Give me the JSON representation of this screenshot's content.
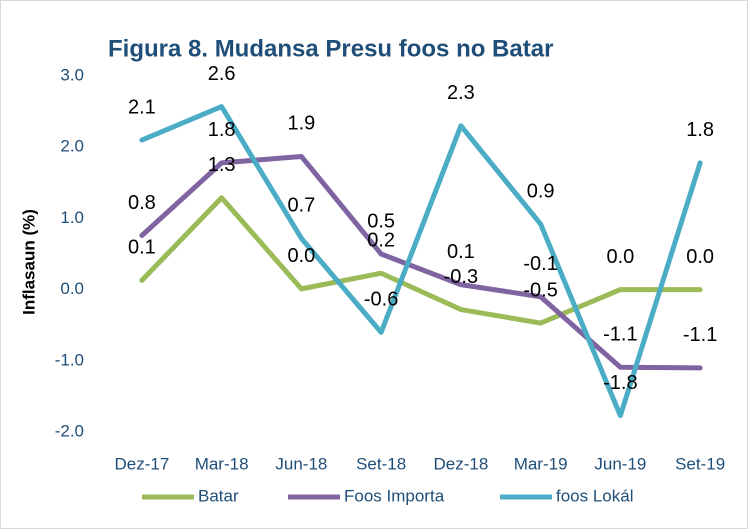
{
  "chart_data": {
    "type": "line",
    "title": "Figura 8. Mudansa Presu foos no Batar",
    "y_label": "Inflasaun  (%)",
    "categories": [
      "Dez-17",
      "Mar-18",
      "Jun-18",
      "Set-18",
      "Dez-18",
      "Mar-19",
      "Jun-19",
      "Set-19"
    ],
    "series": [
      {
        "name": "Batar",
        "color": "#9bbb59",
        "values": [
          0.13,
          1.29,
          0.01,
          0.23,
          -0.28,
          -0.47,
          0.0,
          0.0
        ],
        "value_labels": [
          "0.1",
          "1.3",
          "0.0",
          "0.2",
          "-0.3",
          "-0.5",
          "0.0",
          "0.0"
        ]
      },
      {
        "name": "Foos Importa",
        "color": "#8064a2",
        "values": [
          0.76,
          1.78,
          1.87,
          0.5,
          0.07,
          -0.1,
          -1.09,
          -1.1
        ],
        "value_labels": [
          "0.8",
          "1.8",
          "1.9",
          "0.5",
          "0.1",
          "-0.1",
          "-1.1",
          "-1.1"
        ]
      },
      {
        "name": "foos Lokál",
        "color": "#4bacc6",
        "values": [
          2.1,
          2.57,
          0.72,
          -0.6,
          2.3,
          0.92,
          -1.77,
          1.78
        ],
        "value_labels": [
          "2.1",
          "2.6",
          "0.7",
          "-0.6",
          "2.3",
          "0.9",
          "-1.8",
          "1.8"
        ]
      }
    ],
    "ylim": [
      -2,
      3
    ],
    "yticks": [
      {
        "value": -2,
        "label": "-2.0"
      },
      {
        "value": -1,
        "label": "-1.0"
      },
      {
        "value": 0,
        "label": "0.0"
      },
      {
        "value": 1,
        "label": "1.0"
      },
      {
        "value": 2,
        "label": "2.0"
      },
      {
        "value": 3,
        "label": "3.0"
      }
    ],
    "grid": false,
    "legend": "bottom"
  }
}
